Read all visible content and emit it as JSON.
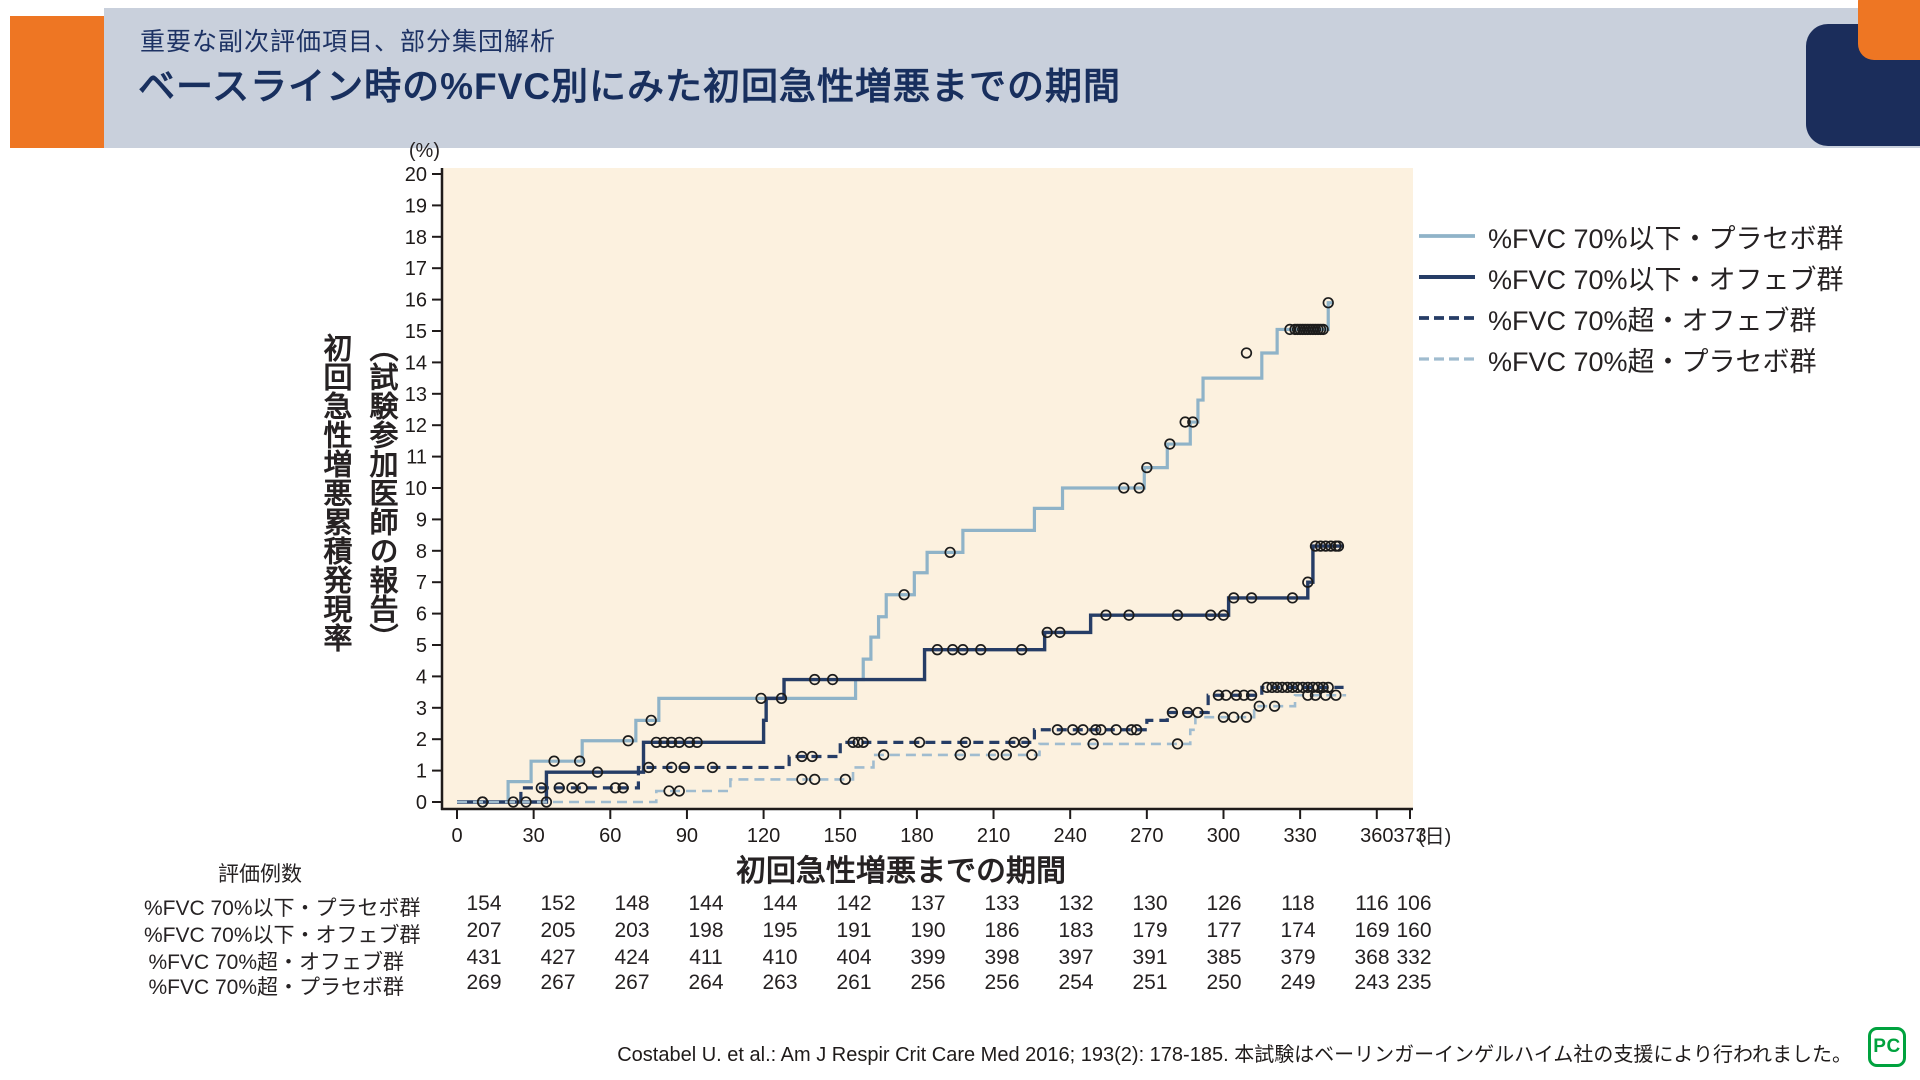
{
  "header": {
    "kicker": "重要な副次評価項目、部分集団解析",
    "title": "ベースライン時の%FVC別にみた初回急性増悪までの期間"
  },
  "colors": {
    "accent_orange": "#ee7623",
    "header_band": "#c9d0dc",
    "title_navy": "#182f5e",
    "plot_background": "#fcf1df",
    "axis_ink": "#1f1b1a",
    "logo_green": "#00a23e"
  },
  "chart_data": {
    "type": "line",
    "subtype": "kaplan-meier-step",
    "unit_y": "(%)",
    "unit_x": "(日)",
    "ylabel_line1": "初回急性増悪累積発現率",
    "ylabel_line2": "（試験参加医師の報告）",
    "xlabel": "初回急性増悪までの期間",
    "ylim": [
      0,
      20
    ],
    "xlim": [
      0,
      373
    ],
    "y_ticks": [
      0,
      1,
      2,
      3,
      4,
      5,
      6,
      7,
      8,
      9,
      10,
      11,
      12,
      13,
      14,
      15,
      16,
      17,
      18,
      19,
      20
    ],
    "x_ticks": [
      0,
      30,
      60,
      90,
      120,
      150,
      180,
      210,
      240,
      270,
      300,
      330,
      360,
      373
    ],
    "series": [
      {
        "name": "%FVC 70%以下・プラセボ群",
        "color": "#8fb3c8",
        "dash": "solid",
        "width": 3.2,
        "steps": [
          [
            20,
            0.65
          ],
          [
            29,
            1.3
          ],
          [
            49,
            1.95
          ],
          [
            70,
            2.6
          ],
          [
            79,
            3.3
          ],
          [
            156,
            3.9
          ],
          [
            159,
            4.55
          ],
          [
            162,
            5.25
          ],
          [
            165,
            5.9
          ],
          [
            168,
            6.6
          ],
          [
            179,
            7.3
          ],
          [
            184,
            7.95
          ],
          [
            198,
            8.65
          ],
          [
            226,
            9.35
          ],
          [
            237,
            10.0
          ],
          [
            269,
            10.65
          ],
          [
            278,
            11.4
          ],
          [
            287,
            12.1
          ],
          [
            290,
            12.8
          ],
          [
            292,
            13.5
          ],
          [
            315,
            14.3
          ],
          [
            321,
            15.05
          ],
          [
            341,
            15.9
          ]
        ],
        "end_day": 343,
        "censors": [
          [
            10,
            0
          ],
          [
            38,
            1.3
          ],
          [
            48,
            1.3
          ],
          [
            67,
            1.95
          ],
          [
            76,
            2.6
          ],
          [
            119,
            3.3
          ],
          [
            127,
            3.3
          ],
          [
            175,
            6.6
          ],
          [
            193,
            7.95
          ],
          [
            261,
            10.0
          ],
          [
            267,
            10.0
          ],
          [
            270,
            10.65
          ],
          [
            279,
            11.4
          ],
          [
            285,
            12.1
          ],
          [
            288,
            12.1
          ],
          [
            309,
            14.3
          ],
          [
            326,
            15.05
          ],
          [
            328,
            15.05
          ],
          [
            329,
            15.05
          ],
          [
            330,
            15.05
          ],
          [
            331,
            15.05
          ],
          [
            332,
            15.05
          ],
          [
            333,
            15.05
          ],
          [
            334,
            15.05
          ],
          [
            335,
            15.05
          ],
          [
            336,
            15.05
          ],
          [
            337,
            15.05
          ],
          [
            338,
            15.05
          ],
          [
            339,
            15.05
          ],
          [
            341,
            15.9
          ]
        ]
      },
      {
        "name": "%FVC 70%以下・オフェブ群",
        "color": "#263d66",
        "dash": "solid",
        "width": 3.4,
        "steps": [
          [
            35,
            0.95
          ],
          [
            73,
            1.9
          ],
          [
            120,
            2.6
          ],
          [
            121,
            3.3
          ],
          [
            128,
            3.9
          ],
          [
            183,
            4.85
          ],
          [
            230,
            5.4
          ],
          [
            248,
            5.95
          ],
          [
            302,
            6.5
          ],
          [
            333,
            7.0
          ],
          [
            335,
            8.15
          ]
        ],
        "end_day": 347,
        "censors": [
          [
            27,
            0
          ],
          [
            55,
            0.95
          ],
          [
            78,
            1.9
          ],
          [
            81,
            1.9
          ],
          [
            84,
            1.9
          ],
          [
            87,
            1.9
          ],
          [
            91,
            1.9
          ],
          [
            94,
            1.9
          ],
          [
            140,
            3.9
          ],
          [
            147,
            3.9
          ],
          [
            188,
            4.85
          ],
          [
            194,
            4.85
          ],
          [
            198,
            4.85
          ],
          [
            205,
            4.85
          ],
          [
            221,
            4.85
          ],
          [
            231,
            5.4
          ],
          [
            236,
            5.4
          ],
          [
            254,
            5.95
          ],
          [
            263,
            5.95
          ],
          [
            282,
            5.95
          ],
          [
            295,
            5.95
          ],
          [
            300,
            5.95
          ],
          [
            304,
            6.5
          ],
          [
            311,
            6.5
          ],
          [
            327,
            6.5
          ],
          [
            333,
            7.0
          ],
          [
            336,
            8.15
          ],
          [
            338,
            8.15
          ],
          [
            340,
            8.15
          ],
          [
            342,
            8.15
          ],
          [
            344,
            8.15
          ],
          [
            345,
            8.15
          ]
        ]
      },
      {
        "name": "%FVC 70%超・オフェブ群",
        "color": "#263d66",
        "dash": "dashed",
        "width": 3.2,
        "steps": [
          [
            25,
            0.45
          ],
          [
            71,
            1.1
          ],
          [
            130,
            1.45
          ],
          [
            150,
            1.9
          ],
          [
            226,
            2.3
          ],
          [
            270,
            2.6
          ],
          [
            278,
            2.85
          ],
          [
            294,
            3.4
          ],
          [
            315,
            3.65
          ]
        ],
        "end_day": 347,
        "censors": [
          [
            10,
            0
          ],
          [
            33,
            0.45
          ],
          [
            40,
            0.45
          ],
          [
            45,
            0.45
          ],
          [
            49,
            0.45
          ],
          [
            62,
            0.45
          ],
          [
            65,
            0.45
          ],
          [
            75,
            1.1
          ],
          [
            84,
            1.1
          ],
          [
            89,
            1.1
          ],
          [
            100,
            1.1
          ],
          [
            135,
            1.45
          ],
          [
            139,
            1.45
          ],
          [
            155,
            1.9
          ],
          [
            157,
            1.9
          ],
          [
            159,
            1.9
          ],
          [
            181,
            1.9
          ],
          [
            199,
            1.9
          ],
          [
            218,
            1.9
          ],
          [
            222,
            1.9
          ],
          [
            235,
            2.3
          ],
          [
            241,
            2.3
          ],
          [
            245,
            2.3
          ],
          [
            250,
            2.3
          ],
          [
            252,
            2.3
          ],
          [
            258,
            2.3
          ],
          [
            264,
            2.3
          ],
          [
            266,
            2.3
          ],
          [
            280,
            2.85
          ],
          [
            286,
            2.85
          ],
          [
            290,
            2.85
          ],
          [
            298,
            3.4
          ],
          [
            301,
            3.4
          ],
          [
            305,
            3.4
          ],
          [
            308,
            3.4
          ],
          [
            311,
            3.4
          ],
          [
            317,
            3.65
          ],
          [
            319,
            3.65
          ],
          [
            321,
            3.65
          ],
          [
            323,
            3.65
          ],
          [
            325,
            3.65
          ],
          [
            327,
            3.65
          ],
          [
            329,
            3.65
          ],
          [
            331,
            3.65
          ],
          [
            333,
            3.65
          ],
          [
            335,
            3.65
          ],
          [
            337,
            3.65
          ],
          [
            339,
            3.65
          ],
          [
            341,
            3.65
          ]
        ]
      },
      {
        "name": "%FVC 70%超・プラセボ群",
        "color": "#a0bccf",
        "dash": "dashed",
        "width": 2.6,
        "steps": [
          [
            78,
            0.35
          ],
          [
            107,
            0.72
          ],
          [
            155,
            1.1
          ],
          [
            163,
            1.5
          ],
          [
            228,
            1.85
          ],
          [
            287,
            2.3
          ],
          [
            289,
            2.7
          ],
          [
            312,
            3.05
          ],
          [
            328,
            3.4
          ]
        ],
        "end_day": 348,
        "censors": [
          [
            22,
            0
          ],
          [
            35,
            0
          ],
          [
            83,
            0.35
          ],
          [
            87,
            0.35
          ],
          [
            135,
            0.72
          ],
          [
            140,
            0.72
          ],
          [
            152,
            0.72
          ],
          [
            167,
            1.5
          ],
          [
            197,
            1.5
          ],
          [
            210,
            1.5
          ],
          [
            215,
            1.5
          ],
          [
            225,
            1.5
          ],
          [
            249,
            1.85
          ],
          [
            282,
            1.85
          ],
          [
            300,
            2.7
          ],
          [
            304,
            2.7
          ],
          [
            309,
            2.7
          ],
          [
            314,
            3.05
          ],
          [
            320,
            3.05
          ],
          [
            333,
            3.4
          ],
          [
            336,
            3.4
          ],
          [
            340,
            3.4
          ],
          [
            344,
            3.4
          ]
        ]
      }
    ]
  },
  "risk_table": {
    "caption": "評価例数",
    "rows": [
      {
        "label": "%FVC 70%以下・プラセボ群",
        "values": [
          154,
          152,
          148,
          144,
          144,
          142,
          137,
          133,
          132,
          130,
          126,
          118,
          116,
          106
        ]
      },
      {
        "label": "%FVC 70%以下・オフェブ群",
        "values": [
          207,
          205,
          203,
          198,
          195,
          191,
          190,
          186,
          183,
          179,
          177,
          174,
          169,
          160
        ]
      },
      {
        "label": "%FVC 70%超・オフェブ群",
        "values": [
          431,
          427,
          424,
          411,
          410,
          404,
          399,
          398,
          397,
          391,
          385,
          379,
          368,
          332
        ]
      },
      {
        "label": "%FVC 70%超・プラセボ群",
        "values": [
          269,
          267,
          267,
          264,
          263,
          261,
          256,
          256,
          254,
          251,
          250,
          249,
          243,
          235
        ]
      }
    ]
  },
  "footer": {
    "citation": "Costabel U. et al.: Am J Respir Crit Care Med 2016; 193(2): 178-185. 本試験はベーリンガーインゲルハイム社の支援により行われました。",
    "logo_text": "PC"
  }
}
